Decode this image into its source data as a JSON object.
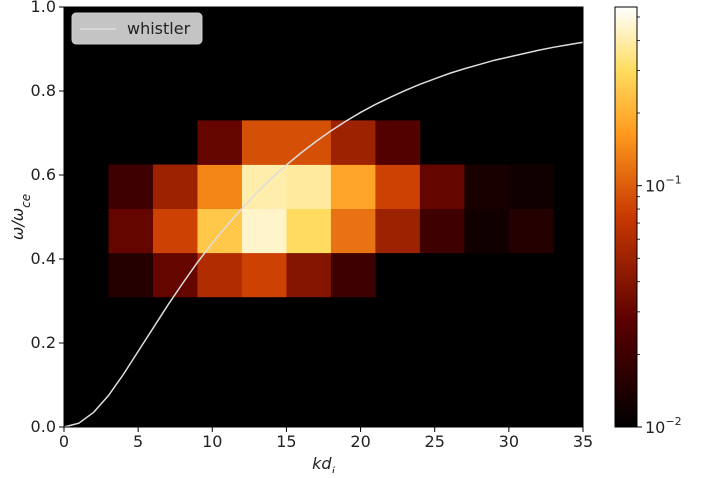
{
  "chart_data": {
    "type": "heatmap",
    "title": "",
    "xlabel": "kd_i",
    "ylabel": "ω/ω_ce",
    "xlim": [
      0,
      35
    ],
    "ylim": [
      0,
      1.0
    ],
    "x_ticks": [
      0,
      5,
      10,
      15,
      20,
      25,
      30,
      35
    ],
    "y_ticks": [
      0.0,
      0.2,
      0.4,
      0.6,
      0.8,
      1.0
    ],
    "y_tick_labels": [
      "0.0",
      "0.2",
      "0.4",
      "0.6",
      "0.8",
      "1.0"
    ],
    "grid": false,
    "bins": {
      "x_start": 3,
      "x_width": 3,
      "y_start": 0.31,
      "y_height": 0.105,
      "rows": [
        [
          0.015,
          0.03,
          0.06,
          0.08,
          0.04,
          0.02,
          null,
          null,
          null,
          null
        ],
        [
          0.03,
          0.08,
          0.25,
          0.45,
          0.3,
          0.12,
          0.05,
          0.02,
          0.012,
          0.015
        ],
        [
          0.02,
          0.05,
          0.14,
          0.4,
          0.38,
          0.18,
          0.08,
          0.03,
          0.013,
          0.012
        ],
        [
          null,
          null,
          0.03,
          0.09,
          0.09,
          0.05,
          0.025,
          null,
          null,
          null
        ]
      ]
    },
    "colorbar": {
      "scale": "log",
      "vmin": 0.01,
      "vmax": 0.55,
      "colormap": "afmhot",
      "tick_labels": [
        "10^-2",
        "10^-1"
      ],
      "tick_values": [
        0.01,
        0.1
      ]
    },
    "series": [
      {
        "name": "whistler",
        "color": "#dddddd",
        "x": [
          0,
          1,
          2,
          3,
          4,
          5,
          6,
          7,
          8,
          9,
          10,
          11,
          12,
          13,
          14,
          15,
          16,
          17,
          18,
          19,
          20,
          21,
          22,
          23,
          24,
          25,
          26,
          27,
          28,
          29,
          30,
          31,
          32,
          33,
          34,
          35
        ],
        "y": [
          0.0,
          0.009,
          0.035,
          0.075,
          0.125,
          0.18,
          0.235,
          0.29,
          0.342,
          0.392,
          0.438,
          0.48,
          0.52,
          0.558,
          0.592,
          0.624,
          0.653,
          0.68,
          0.705,
          0.728,
          0.749,
          0.768,
          0.785,
          0.801,
          0.816,
          0.829,
          0.842,
          0.853,
          0.863,
          0.873,
          0.881,
          0.889,
          0.897,
          0.904,
          0.91,
          0.916
        ]
      }
    ],
    "legend": {
      "placement": "top-left",
      "entries": [
        "whistler"
      ]
    }
  }
}
